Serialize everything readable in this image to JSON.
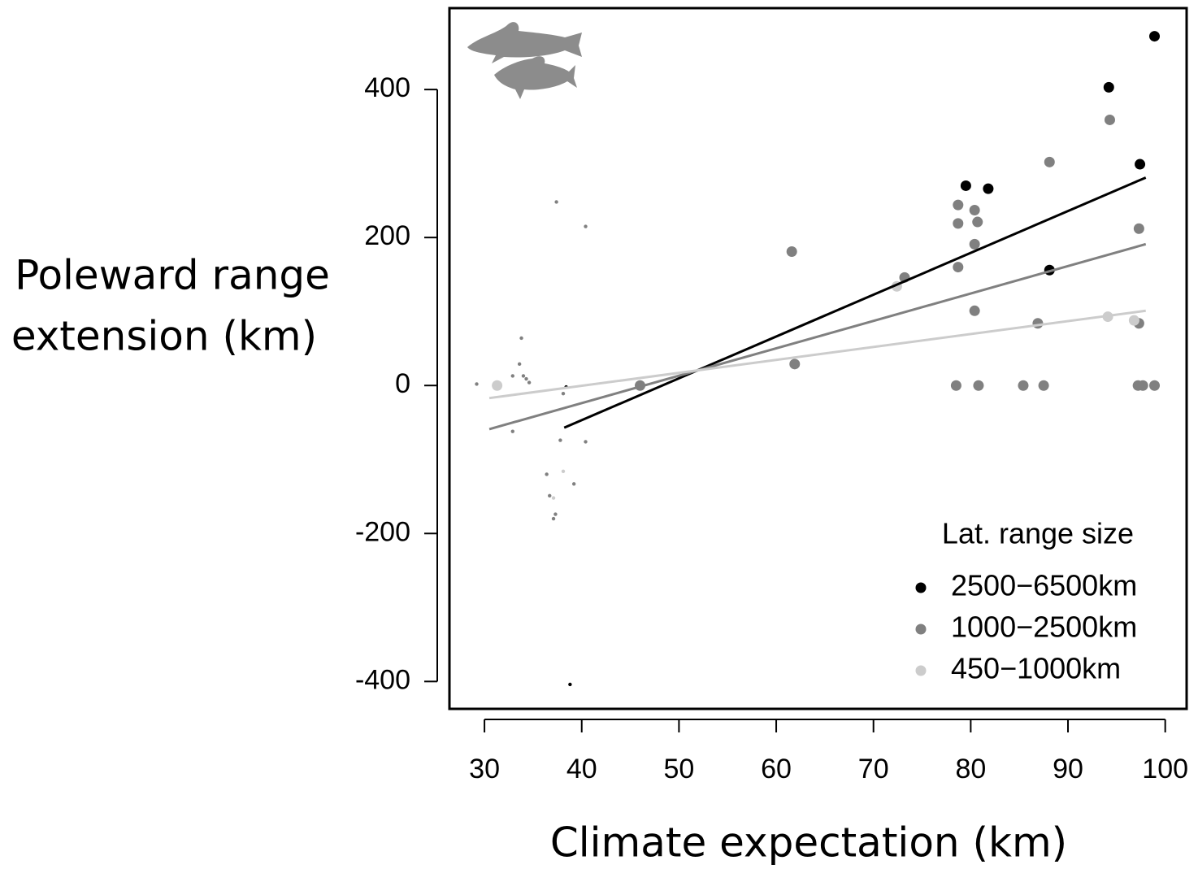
{
  "chart_data": {
    "type": "scatter",
    "xlabel": "Climate expectation (km)",
    "ylabel": [
      "Poleward range",
      "extension (km)"
    ],
    "legend_title": "Lat. range size",
    "legend_position": "bottom-right",
    "xlim": [
      26.4,
      102.2
    ],
    "ylim": [
      -437,
      510
    ],
    "xticks": [
      30,
      40,
      50,
      60,
      70,
      80,
      90,
      100
    ],
    "yticks": [
      -400,
      -200,
      0,
      200,
      400
    ],
    "series": [
      {
        "name": "2500−6500km",
        "color": "#000000",
        "x": [
          98.9,
          94.2,
          97.4,
          79.5,
          81.8,
          88.1
        ],
        "values": [
          472,
          403,
          299,
          270,
          266,
          156
        ],
        "minor_x": [
          38.4,
          38.8
        ],
        "minor_values": [
          -2,
          -404
        ],
        "fit": {
          "x": [
            38.2,
            98
          ],
          "y": [
            -57,
            281
          ]
        }
      },
      {
        "name": "1000−2500km",
        "color": "#808080",
        "x": [
          94.3,
          88.1,
          61.6,
          78.7,
          80.4,
          78.7,
          80.7,
          80.4,
          78.7,
          97.3,
          80.4,
          86.9,
          97.3,
          73.2,
          61.9,
          46,
          78.5,
          80.8,
          85.4,
          87.5,
          97.2,
          97.7,
          98.9
        ],
        "values": [
          359,
          302,
          181,
          244,
          237,
          219,
          221,
          191,
          160,
          212,
          101,
          84,
          84,
          146,
          29,
          0,
          0,
          0,
          0,
          0,
          0,
          0,
          0
        ],
        "minor_x": [
          37.4,
          40.4,
          33.8,
          33.6,
          32.9,
          34,
          34.3,
          34.6,
          29.2,
          38.1,
          32.9,
          37.8,
          40.4,
          36.4,
          39.2,
          36.7,
          37.3,
          37.1
        ],
        "minor_values": [
          248,
          215,
          64,
          29,
          13,
          13,
          9,
          4,
          2,
          -11,
          -62,
          -74,
          -76,
          -120,
          -133,
          -149,
          -174,
          -180
        ],
        "fit": {
          "x": [
            30.5,
            98
          ],
          "y": [
            -59,
            191
          ]
        }
      },
      {
        "name": "450−1000km",
        "color": "#cccccc",
        "x": [
          31.3,
          72.4,
          94.1,
          96.8
        ],
        "values": [
          0,
          134,
          93,
          88
        ],
        "minor_x": [
          38.1,
          37.1
        ],
        "minor_values": [
          -116,
          -152
        ],
        "fit": {
          "x": [
            30.5,
            98
          ],
          "y": [
            -17,
            101
          ]
        }
      }
    ]
  }
}
